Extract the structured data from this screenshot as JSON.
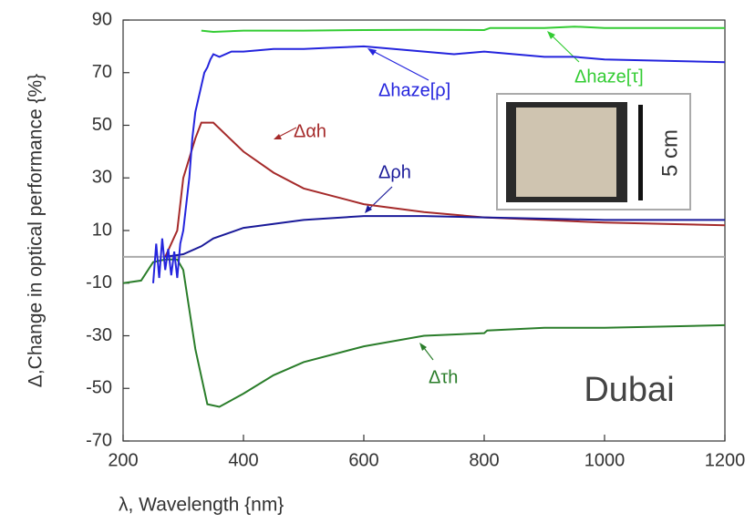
{
  "chart_data": {
    "type": "line",
    "xlabel": "λ, Wavelength {nm}",
    "ylabel": "Δ,Change in optical performance {%}",
    "xlim": [
      200,
      1200
    ],
    "xticks": [
      200,
      400,
      600,
      800,
      1000,
      1200
    ],
    "ylim": [
      -70,
      90
    ],
    "yticks": [
      -70,
      -50,
      -30,
      -10,
      10,
      30,
      50,
      70,
      90
    ],
    "hline": 0,
    "series": [
      {
        "name": "Δτh",
        "color": "#2a7d2a",
        "x": [
          200,
          230,
          250,
          270,
          290,
          300,
          320,
          340,
          360,
          400,
          450,
          500,
          600,
          700,
          800,
          805,
          900,
          930,
          1000,
          1100,
          1200
        ],
        "values": [
          -10,
          -9,
          -2,
          -1,
          -1,
          -5,
          -35,
          -56,
          -57,
          -52,
          -45,
          -40,
          -34,
          -30,
          -29,
          -28,
          -27,
          -27,
          -27,
          -26.5,
          -26
        ]
      },
      {
        "name": "Δαh",
        "color": "#a52a2a",
        "x": [
          270,
          290,
          300,
          320,
          330,
          350,
          400,
          450,
          500,
          600,
          700,
          800,
          900,
          1000,
          1100,
          1200
        ],
        "values": [
          0,
          10,
          30,
          45,
          51,
          51,
          40,
          32,
          26,
          20,
          17,
          15,
          14,
          13,
          12.5,
          12
        ]
      },
      {
        "name": "Δρh",
        "color": "#1a1a99",
        "x": [
          270,
          300,
          330,
          350,
          400,
          500,
          600,
          700,
          800,
          900,
          1000,
          1100,
          1200
        ],
        "values": [
          0,
          1,
          4,
          7,
          11,
          14,
          15.5,
          15.5,
          15,
          14.5,
          14,
          14,
          14
        ]
      },
      {
        "name": "Δhaze[ρ]",
        "color": "#2424dd",
        "x": [
          250,
          255,
          260,
          265,
          270,
          275,
          280,
          285,
          290,
          295,
          300,
          305,
          310,
          315,
          320,
          325,
          330,
          335,
          340,
          345,
          350,
          360,
          380,
          400,
          450,
          500,
          550,
          600,
          650,
          700,
          750,
          800,
          850,
          900,
          950,
          1000,
          1100,
          1200
        ],
        "values": [
          -10,
          5,
          -8,
          7,
          -5,
          3,
          -7,
          2,
          -8,
          5,
          10,
          20,
          30,
          45,
          55,
          60,
          65,
          70,
          72,
          75,
          77,
          76,
          78,
          78,
          79,
          79,
          79.5,
          80,
          79,
          78,
          77,
          78,
          77,
          76,
          76,
          75,
          74.5,
          74
        ]
      },
      {
        "name": "Δhaze[τ]",
        "color": "#33cc33",
        "x": [
          330,
          350,
          400,
          500,
          600,
          700,
          800,
          810,
          900,
          950,
          1000,
          1100,
          1200
        ],
        "values": [
          86,
          85.5,
          86,
          86,
          86.2,
          86.3,
          86.2,
          87,
          87,
          87.5,
          87,
          87,
          87
        ]
      }
    ],
    "annotations": {
      "location": "Dubai",
      "scale": "5 cm"
    }
  }
}
